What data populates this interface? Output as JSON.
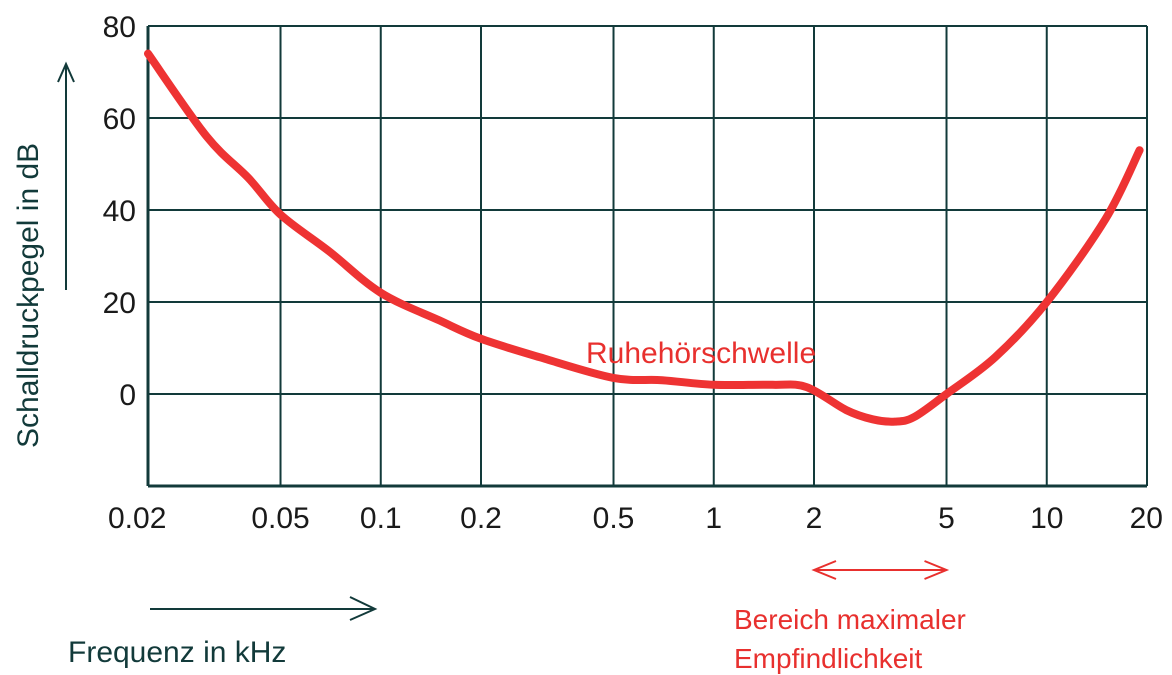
{
  "chart_data": {
    "type": "line",
    "xscale": "log",
    "xlim": [
      0.02,
      20
    ],
    "ylim": [
      -20,
      80
    ],
    "grid": true,
    "xlabel": "Frequenz in kHz",
    "ylabel": "Schalldruckpegel in dB",
    "x_ticks": [
      {
        "value": 0.02,
        "label": "0.02"
      },
      {
        "value": 0.05,
        "label": "0.05"
      },
      {
        "value": 0.1,
        "label": "0.1"
      },
      {
        "value": 0.2,
        "label": "0.2"
      },
      {
        "value": 0.5,
        "label": "0.5"
      },
      {
        "value": 1,
        "label": "1"
      },
      {
        "value": 2,
        "label": "2"
      },
      {
        "value": 5,
        "label": "5"
      },
      {
        "value": 10,
        "label": "10"
      },
      {
        "value": 20,
        "label": "20"
      }
    ],
    "y_ticks": [
      {
        "value": 0,
        "label": "0"
      },
      {
        "value": 20,
        "label": "20"
      },
      {
        "value": 40,
        "label": "40"
      },
      {
        "value": 60,
        "label": "60"
      },
      {
        "value": 80,
        "label": "80"
      }
    ],
    "series": [
      {
        "name": "Ruhehörschwelle",
        "color": "#ee3333",
        "x": [
          0.02,
          0.03,
          0.04,
          0.05,
          0.07,
          0.1,
          0.15,
          0.2,
          0.3,
          0.5,
          0.7,
          1,
          1.5,
          1.9,
          2.5,
          3,
          3.5,
          4,
          5,
          7,
          10,
          15,
          19
        ],
        "y": [
          74,
          56,
          47,
          39,
          31,
          22,
          16,
          12,
          8,
          3.5,
          3,
          2,
          2,
          1.5,
          -3.5,
          -5.5,
          -6,
          -5,
          0,
          8,
          20,
          38,
          53
        ]
      }
    ],
    "annotations": [
      {
        "text": "Ruhehörschwelle",
        "color": "#ee3333"
      },
      {
        "text": "Bereich maximaler",
        "color": "#e8302e"
      },
      {
        "text": "Empfindlichkeit",
        "color": "#e8302e"
      }
    ],
    "range_marker": {
      "x_from": 2,
      "x_to": 5,
      "color": "#e8302e"
    }
  }
}
